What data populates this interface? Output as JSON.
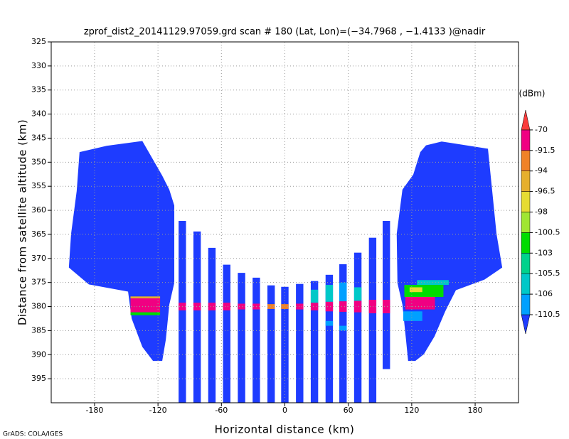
{
  "chart_data": {
    "type": "heatmap",
    "title": "zprof_dist2_20141129.97059.grd   scan # 180   (Lat, Lon)=(−34.7968 , −1.4133 )@nadir",
    "x_label": "Horizontal distance (km)",
    "y_label": "Distance from satellite altitude (km)",
    "credit": "GrADS: COLA/IGES",
    "colorbar_label": "(dBm)",
    "xlim": [
      -221,
      221
    ],
    "ylim": [
      400,
      325
    ],
    "xticks": [
      -180,
      -120,
      -60,
      0,
      60,
      120,
      180
    ],
    "yticks": [
      325,
      330,
      335,
      340,
      345,
      350,
      355,
      360,
      365,
      370,
      375,
      380,
      385,
      390,
      395
    ],
    "grid": true,
    "levels": [
      -110.5,
      -106,
      -105.5,
      -103,
      -100.5,
      -98,
      -96.5,
      -94,
      -91.5,
      -70
    ],
    "colors": [
      "#1e3cff",
      "#00a0ff",
      "#00c8c8",
      "#00d28c",
      "#00dc00",
      "#a0e632",
      "#e6dc32",
      "#e6af2d",
      "#f08228",
      "#f00082",
      "#fa3c3c"
    ],
    "swaths": [
      {
        "x": [
          -194.2,
          -168.5,
          -134.8,
          -126.7,
          -116.0,
          -109.3,
          -104.6,
          -104.6,
          -109.3,
          -112.6,
          -116.0,
          -124.7,
          -134.8,
          -144.9,
          -148.3,
          -185.4,
          -204.3,
          -202.2,
          -196.9
        ],
        "y": [
          347.9,
          346.6,
          345.6,
          348.7,
          352.8,
          355.7,
          359.0,
          375.1,
          379.6,
          386.9,
          391.3,
          391.3,
          388.4,
          382.5,
          376.9,
          375.4,
          371.9,
          364.9,
          356.0
        ]
      },
      {
        "x": [
          133.5,
          148.3,
          192.1,
          195.5,
          200.2,
          205.6,
          188.8,
          161.8,
          151.7,
          141.6,
          131.5,
          123.4,
          116.6,
          114.6,
          111.2,
          106.5,
          105.8,
          111.2,
          121.4,
          128.1
        ],
        "y": [
          346.5,
          345.7,
          347.2,
          354.6,
          364.9,
          371.9,
          374.4,
          376.6,
          381.0,
          386.2,
          389.9,
          391.3,
          391.3,
          386.9,
          379.6,
          375.1,
          364.9,
          355.7,
          352.6,
          347.9
        ]
      }
    ],
    "column_width": 7,
    "columns": {
      "x": [
        -97,
        -83,
        -69,
        -55,
        -41,
        -27,
        -13,
        0,
        14,
        28,
        42,
        55,
        69,
        83,
        96
      ],
      "top": [
        362.2,
        364.4,
        367.8,
        371.3,
        373,
        374,
        375.6,
        375.9,
        375.3,
        374.7,
        373.4,
        371.2,
        368.8,
        365.7,
        362.2
      ],
      "bottom": [
        400,
        400,
        400,
        400,
        400,
        400,
        400,
        400,
        400,
        400,
        400,
        400,
        400,
        400,
        393
      ]
    },
    "cells": {
      "x0": [
        -100.5,
        -86.5,
        -72.5,
        -58.5,
        -44.5,
        -30.5,
        -16.5,
        -3.5,
        10.5,
        24.5,
        38.5,
        51.5,
        65.5,
        79.5,
        92.5,
        -146,
        -146,
        -146,
        114,
        113,
        125,
        118,
        112,
        24.5,
        38.5,
        51.5,
        65.5,
        38.5,
        51.5
      ],
      "x1": [
        -93.5,
        -79.5,
        -65.5,
        -51.5,
        -37.5,
        -23.5,
        -9.5,
        3.5,
        17.5,
        31.5,
        45.5,
        58.5,
        72.5,
        86.5,
        99.5,
        -118,
        -118,
        -118,
        142,
        150,
        155,
        130,
        130,
        31.5,
        45.5,
        58.5,
        72.5,
        45.5,
        58.5
      ],
      "y0": [
        379.2,
        379.2,
        379.2,
        379.2,
        379.4,
        379.4,
        379.5,
        379.5,
        379.4,
        379.2,
        379.0,
        378.9,
        378.8,
        378.6,
        378.6,
        378.3,
        377.9,
        381.2,
        378.0,
        375.5,
        374.5,
        376.0,
        381.0,
        376.5,
        375.5,
        375.0,
        376.0,
        383.0,
        384.0
      ],
      "y1": [
        380.8,
        380.8,
        380.8,
        380.8,
        380.6,
        380.6,
        380.5,
        380.5,
        380.6,
        380.8,
        381.0,
        381.1,
        381.2,
        381.4,
        381.4,
        381.2,
        378.3,
        381.8,
        380.6,
        378.0,
        375.5,
        377.0,
        383.0,
        379.2,
        379.0,
        378.9,
        378.8,
        384.0,
        385.0
      ],
      "values": [
        -85,
        -85,
        -85,
        -85,
        -90,
        -90,
        -93,
        -93,
        -90,
        -85,
        -85,
        -85,
        -85,
        -85,
        -85,
        -80,
        -95,
        -101,
        -80,
        -101,
        -105.8,
        -97,
        -107,
        -105.8,
        -105.8,
        -107,
        -105.8,
        -107,
        -107
      ]
    }
  }
}
